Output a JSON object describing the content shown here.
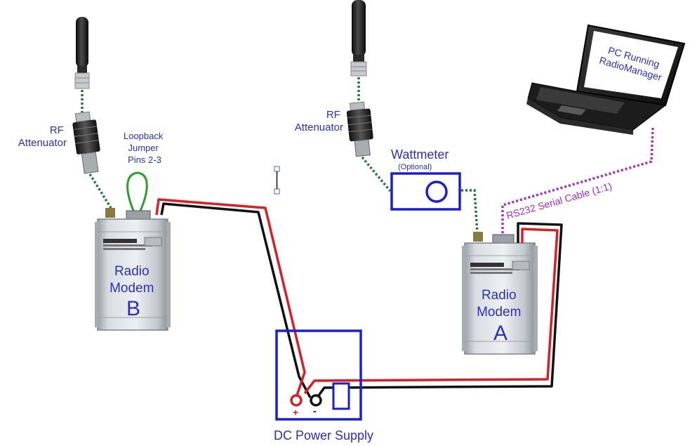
{
  "labels": {
    "rf_attenuator_left": [
      "RF",
      "Attenuator"
    ],
    "rf_attenuator_right": [
      "RF",
      "Attenuator"
    ],
    "loopback_jumper": [
      "Loopback",
      "Jumper",
      "Pins 2-3"
    ],
    "wattmeter": "Wattmeter",
    "wattmeter_optional": "(Optional)",
    "pc_label": [
      "PC Running",
      "RadioManager"
    ],
    "rs232_cable": "RS232 Serial Cable (1:1)",
    "modem_b": [
      "Radio",
      "Modem",
      "B"
    ],
    "modem_a": [
      "Radio",
      "Modem",
      "A"
    ],
    "power_supply": "DC Power Supply",
    "plus_terminal": "+",
    "minus_terminal": "-"
  },
  "colors": {
    "label_blue": "#2b2fbf",
    "box_blue": "#1a1fd6",
    "rf_dotted_green": "#1e7a3a",
    "serial_dotted_purple": "#a32cc4",
    "loopback_green": "#2aa02a",
    "wire_red": "#d81f26",
    "wire_black": "#111111"
  }
}
